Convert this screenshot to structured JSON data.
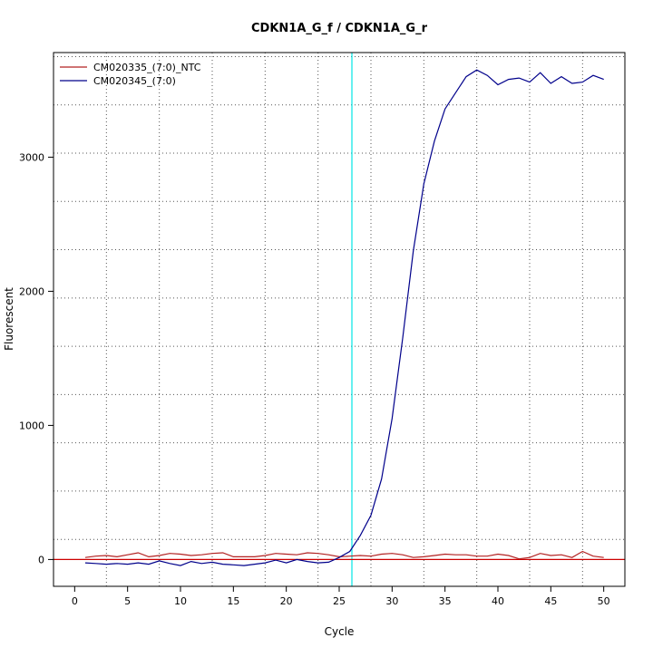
{
  "chart_data": {
    "type": "line",
    "title": "CDKN1A_G_f / CDKN1A_G_r",
    "xlabel": "Cycle",
    "ylabel": "Fluorescent",
    "xlim": [
      -2,
      52
    ],
    "ylim": [
      -200,
      3780
    ],
    "x_ticks": [
      0,
      5,
      10,
      15,
      20,
      25,
      30,
      35,
      40,
      45,
      50
    ],
    "y_ticks": [
      0,
      1000,
      2000,
      3000
    ],
    "grid": true,
    "x_grid": [
      3,
      8,
      13,
      18,
      23,
      28,
      33,
      38,
      43,
      48
    ],
    "y_grid": [
      150,
      510,
      870,
      1230,
      1590,
      1950,
      2310,
      2670,
      3030,
      3390,
      3750
    ],
    "threshold_x": 26.2,
    "baseline_y": 0,
    "legend_position": "top-left",
    "series": [
      {
        "name": "CM020335_(7:0)_NTC",
        "color": "#b22222",
        "x": [
          1,
          2,
          3,
          4,
          5,
          6,
          7,
          8,
          9,
          10,
          11,
          12,
          13,
          14,
          15,
          16,
          17,
          18,
          19,
          20,
          21,
          22,
          23,
          24,
          25,
          26,
          27,
          28,
          29,
          30,
          31,
          32,
          33,
          34,
          35,
          36,
          37,
          38,
          39,
          40,
          41,
          42,
          43,
          44,
          45,
          46,
          47,
          48,
          49,
          50
        ],
        "y": [
          15,
          25,
          30,
          20,
          35,
          50,
          20,
          30,
          45,
          40,
          30,
          35,
          45,
          50,
          20,
          20,
          20,
          30,
          45,
          40,
          35,
          50,
          45,
          35,
          20,
          25,
          30,
          25,
          40,
          45,
          35,
          15,
          20,
          30,
          40,
          35,
          35,
          25,
          25,
          40,
          30,
          5,
          15,
          45,
          30,
          35,
          15,
          60,
          25,
          15
        ]
      },
      {
        "name": "CM020345_(7:0)",
        "color": "#00008b",
        "x": [
          1,
          2,
          3,
          4,
          5,
          6,
          7,
          8,
          9,
          10,
          11,
          12,
          13,
          14,
          15,
          16,
          17,
          18,
          19,
          20,
          21,
          22,
          23,
          24,
          25,
          26,
          27,
          28,
          29,
          30,
          31,
          32,
          33,
          34,
          35,
          36,
          37,
          38,
          39,
          40,
          41,
          42,
          43,
          44,
          45,
          46,
          47,
          48,
          49,
          50
        ],
        "y": [
          -25,
          -30,
          -35,
          -30,
          -35,
          -25,
          -35,
          -10,
          -30,
          -45,
          -15,
          -30,
          -20,
          -35,
          -40,
          -45,
          -35,
          -25,
          -5,
          -25,
          0,
          -15,
          -25,
          -20,
          15,
          60,
          180,
          330,
          600,
          1050,
          1650,
          2300,
          2800,
          3120,
          3360,
          3480,
          3600,
          3650,
          3610,
          3540,
          3580,
          3590,
          3560,
          3630,
          3550,
          3600,
          3550,
          3560,
          3610,
          3580
        ]
      }
    ]
  }
}
